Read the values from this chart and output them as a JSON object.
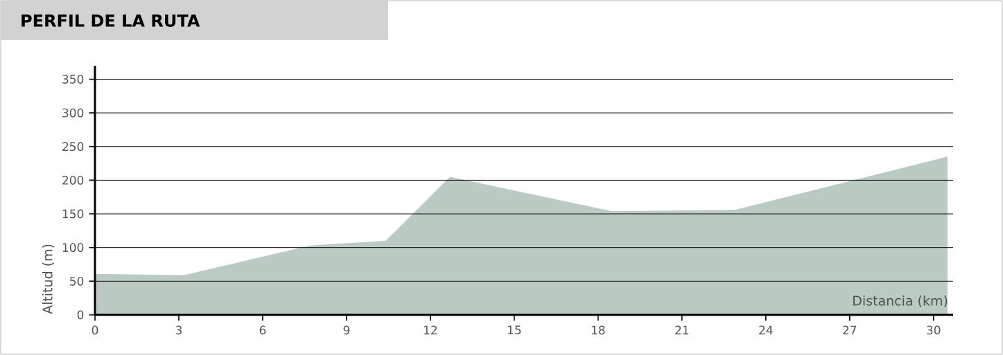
{
  "chart_data": {
    "type": "area",
    "title": "PERFIL DE LA RUTA",
    "xlabel": "Distancia (km)",
    "ylabel": "Altitud (m)",
    "x": [
      0,
      3.2,
      7.7,
      10.4,
      12.7,
      18.5,
      22.9,
      30.5
    ],
    "values": [
      61,
      59,
      103,
      110,
      205,
      154,
      156,
      235
    ],
    "color": "#bccac4",
    "xlim": [
      0,
      30.7
    ],
    "ylim": [
      0,
      370
    ],
    "xticks": [
      0,
      3,
      6,
      9,
      12,
      15,
      18,
      21,
      24,
      27,
      30
    ],
    "yticks": [
      0,
      50,
      100,
      150,
      200,
      250,
      300,
      350
    ],
    "grid": "y"
  }
}
